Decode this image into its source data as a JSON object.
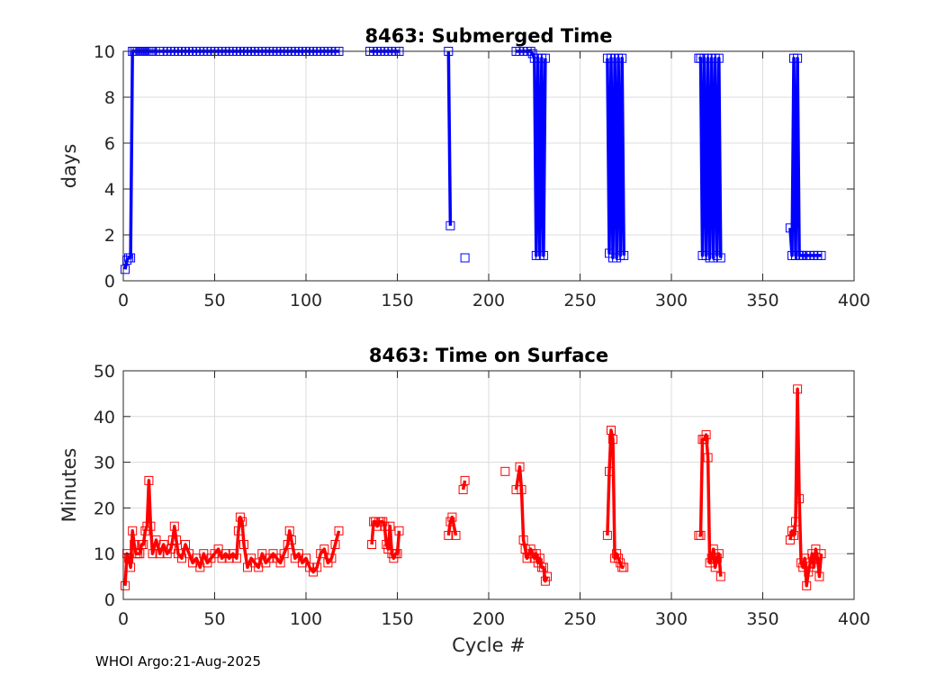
{
  "chart_data": [
    {
      "type": "line",
      "title": "8463: Submerged Time",
      "xlabel": "",
      "ylabel": "days",
      "xlim": [
        0,
        400
      ],
      "ylim": [
        0,
        10
      ],
      "xticks": [
        "0",
        "50",
        "100",
        "150",
        "200",
        "250",
        "300",
        "350",
        "400"
      ],
      "yticks": [
        "0",
        "2",
        "4",
        "6",
        "8",
        "10"
      ],
      "grid": true,
      "color": "#0000ff",
      "marker": "square",
      "x": [
        1,
        2,
        3,
        4,
        5,
        6,
        7,
        8,
        9,
        10,
        11,
        12,
        13,
        14,
        15,
        16,
        20,
        22,
        24,
        26,
        28,
        30,
        32,
        34,
        36,
        38,
        40,
        42,
        44,
        46,
        48,
        50,
        52,
        54,
        56,
        58,
        60,
        62,
        64,
        66,
        68,
        70,
        72,
        74,
        76,
        78,
        80,
        82,
        84,
        86,
        88,
        90,
        92,
        94,
        96,
        98,
        100,
        102,
        104,
        106,
        108,
        110,
        112,
        114,
        116,
        118,
        null,
        135,
        137,
        139,
        141,
        143,
        145,
        147,
        149,
        151,
        null,
        178,
        179,
        null,
        187,
        null,
        215,
        217,
        219,
        221,
        223,
        224,
        225,
        226,
        227,
        228,
        229,
        230,
        231,
        null,
        265,
        266,
        267,
        268,
        269,
        270,
        271,
        272,
        273,
        274,
        null,
        315,
        316,
        317,
        318,
        319,
        320,
        321,
        322,
        323,
        324,
        325,
        326,
        327,
        null,
        365,
        366,
        367,
        368,
        369,
        370,
        371,
        372,
        374,
        376,
        378,
        380,
        382
      ],
      "y": [
        0.5,
        0.9,
        1.0,
        1.0,
        10.0,
        10.0,
        10.0,
        10.0,
        10.0,
        10.0,
        10.0,
        10.0,
        10.0,
        10.0,
        10.0,
        10.0,
        10.0,
        10.0,
        10.0,
        10.0,
        10.0,
        10.0,
        10.0,
        10.0,
        10.0,
        10.0,
        10.0,
        10.0,
        10.0,
        10.0,
        10.0,
        10.0,
        10.0,
        10.0,
        10.0,
        10.0,
        10.0,
        10.0,
        10.0,
        10.0,
        10.0,
        10.0,
        10.0,
        10.0,
        10.0,
        10.0,
        10.0,
        10.0,
        10.0,
        10.0,
        10.0,
        10.0,
        10.0,
        10.0,
        10.0,
        10.0,
        10.0,
        10.0,
        10.0,
        10.0,
        10.0,
        10.0,
        10.0,
        10.0,
        10.0,
        10.0,
        null,
        10.0,
        10.0,
        10.0,
        10.0,
        10.0,
        10.0,
        10.0,
        10.0,
        10.0,
        null,
        10.0,
        2.4,
        null,
        1.0,
        null,
        10.0,
        10.0,
        10.0,
        10.0,
        10.0,
        9.9,
        9.7,
        1.1,
        9.7,
        1.1,
        9.7,
        1.1,
        9.7,
        null,
        9.7,
        1.2,
        9.7,
        1.0,
        9.7,
        1.0,
        9.7,
        1.1,
        9.7,
        1.1,
        null,
        9.7,
        9.7,
        1.1,
        9.7,
        1.1,
        9.7,
        1.0,
        9.7,
        1.0,
        9.7,
        1.1,
        9.7,
        1.0,
        null,
        2.3,
        1.1,
        9.7,
        1.1,
        9.7,
        1.1,
        1.1,
        1.1,
        1.1,
        1.1,
        1.1,
        1.1,
        1.1
      ]
    },
    {
      "type": "line",
      "title": "8463: Time on Surface",
      "xlabel": "Cycle #",
      "ylabel": "Minutes",
      "xlim": [
        0,
        400
      ],
      "ylim": [
        0,
        50
      ],
      "xticks": [
        "0",
        "50",
        "100",
        "150",
        "200",
        "250",
        "300",
        "350",
        "400"
      ],
      "yticks": [
        "0",
        "10",
        "20",
        "30",
        "40",
        "50"
      ],
      "grid": true,
      "color": "#ff0000",
      "marker": "square",
      "x": [
        1,
        2,
        3,
        4,
        5,
        6,
        7,
        8,
        9,
        10,
        11,
        12,
        13,
        14,
        15,
        16,
        18,
        20,
        22,
        24,
        26,
        27,
        28,
        29,
        30,
        32,
        34,
        36,
        38,
        40,
        42,
        44,
        46,
        48,
        50,
        52,
        54,
        56,
        58,
        60,
        62,
        63,
        64,
        65,
        66,
        68,
        70,
        72,
        74,
        76,
        78,
        80,
        82,
        84,
        86,
        88,
        90,
        91,
        92,
        94,
        96,
        98,
        100,
        102,
        104,
        106,
        108,
        110,
        112,
        114,
        116,
        118,
        null,
        136,
        137,
        138,
        139,
        140,
        141,
        142,
        143,
        144,
        145,
        146,
        147,
        148,
        149,
        150,
        151,
        null,
        178,
        179,
        180,
        182,
        null,
        186,
        187,
        null,
        209,
        null,
        215,
        217,
        218,
        219,
        220,
        221,
        222,
        223,
        224,
        225,
        226,
        227,
        228,
        229,
        230,
        231,
        232,
        null,
        265,
        266,
        267,
        268,
        269,
        270,
        271,
        272,
        273,
        274,
        null,
        315,
        316,
        317,
        318,
        319,
        320,
        321,
        322,
        323,
        324,
        325,
        326,
        327,
        null,
        365,
        366,
        367,
        368,
        369,
        370,
        371,
        372,
        373,
        374,
        375,
        376,
        377,
        378,
        379,
        380,
        381,
        382
      ],
      "y": [
        3,
        10,
        9,
        7,
        15,
        12,
        10,
        10,
        10,
        12,
        12,
        15,
        16,
        26,
        16,
        10,
        13,
        10,
        12,
        10,
        11,
        13,
        16,
        13,
        10,
        9,
        12,
        10,
        8,
        9,
        7,
        10,
        8,
        9,
        10,
        11,
        9,
        10,
        9,
        10,
        9,
        15,
        18,
        17,
        12,
        7,
        9,
        8,
        7,
        10,
        8,
        9,
        10,
        9,
        8,
        10,
        12,
        15,
        13,
        9,
        10,
        8,
        9,
        7,
        6,
        7,
        10,
        11,
        8,
        9,
        12,
        15,
        null,
        12,
        17,
        17,
        16,
        17,
        17,
        17,
        16,
        12,
        11,
        16,
        10,
        9,
        10,
        10,
        15,
        null,
        14,
        17,
        18,
        14,
        null,
        24,
        26,
        null,
        28,
        null,
        24,
        29,
        24,
        13,
        11,
        9,
        10,
        11,
        10,
        9,
        10,
        8,
        9,
        7,
        7,
        4,
        5,
        null,
        14,
        28,
        37,
        35,
        9,
        10,
        9,
        8,
        7,
        7,
        null,
        14,
        14,
        35,
        35,
        36,
        31,
        8,
        9,
        11,
        7,
        9,
        10,
        5,
        null,
        13,
        15,
        14,
        17,
        46,
        22,
        8,
        7,
        9,
        3,
        6,
        8,
        10,
        7,
        11,
        9,
        5,
        10
      ]
    }
  ],
  "footer": "WHOI Argo:21-Aug-2025"
}
